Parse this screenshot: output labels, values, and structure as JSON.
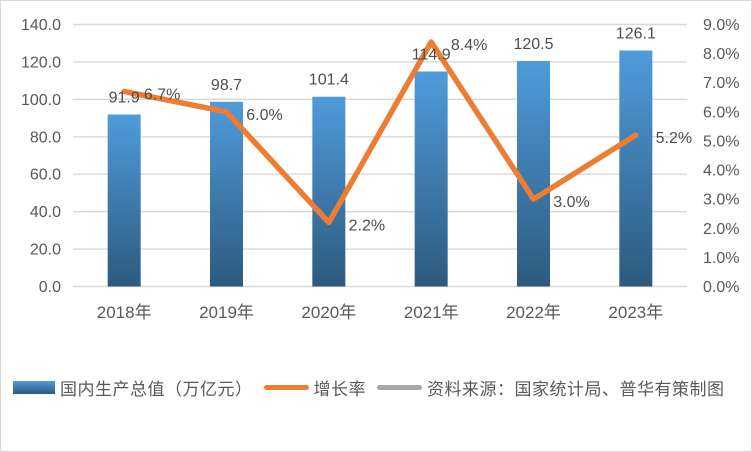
{
  "chart_data": {
    "type": "combo",
    "categories": [
      "2018年",
      "2019年",
      "2020年",
      "2021年",
      "2022年",
      "2023年"
    ],
    "series": [
      {
        "name": "国内生产总值（万亿元）",
        "type": "bar",
        "axis": "left",
        "values": [
          91.9,
          98.7,
          101.4,
          114.9,
          120.5,
          126.1
        ],
        "labels": [
          "91.9",
          "98.7",
          "101.4",
          "114.9",
          "120.5",
          "126.1"
        ],
        "color_top": "#4f9bdc",
        "color_bottom": "#2d5a7d"
      },
      {
        "name": "增长率",
        "type": "line",
        "axis": "right",
        "values": [
          6.7,
          6.0,
          2.2,
          8.4,
          3.0,
          5.2
        ],
        "labels": [
          "6.7%",
          "6.0%",
          "2.2%",
          "8.4%",
          "3.0%",
          "5.2%"
        ],
        "color": "#ed7d31"
      }
    ],
    "left_axis": {
      "min": 0,
      "max": 140,
      "step": 20,
      "tick_labels": [
        "140.0",
        "120.0",
        "100.0",
        "80.0",
        "60.0",
        "40.0",
        "20.0",
        "0.0"
      ]
    },
    "right_axis": {
      "min": 0,
      "max": 9,
      "step": 1,
      "tick_labels": [
        "9.0%",
        "8.0%",
        "7.0%",
        "6.0%",
        "5.0%",
        "4.0%",
        "3.0%",
        "2.0%",
        "1.0%",
        "0.0%"
      ]
    },
    "legend": [
      {
        "label": "国内生产总值（万亿元）",
        "swatch": "bar",
        "color": "#3a7ab8"
      },
      {
        "label": "增长率",
        "swatch": "line",
        "color": "#ed7d31"
      },
      {
        "label": "资料来源：国家统计局、普华有策制图",
        "swatch": "line",
        "color": "#a6a6a6"
      }
    ],
    "grid_on": true,
    "grid_color": "#d9d9d9",
    "axis_text_color": "#595959",
    "data_label_color": "#4d4d4d",
    "legend_position": "bottom"
  }
}
